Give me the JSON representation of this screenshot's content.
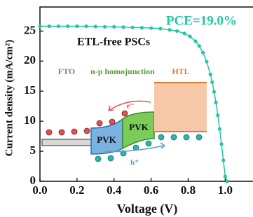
{
  "chart_data": {
    "type": "line",
    "x_label": "Voltage (V)",
    "y_label": "Current density (mA/cm²)",
    "annotations": [
      "PCE=19.0%",
      "ETL-free PSCs",
      "FTO",
      "n-p homojunction",
      "HTL",
      "PVK",
      "PVK",
      "e⁻",
      "h⁺"
    ],
    "x": [
      0,
      0.05,
      0.1,
      0.15,
      0.2,
      0.25,
      0.3,
      0.35,
      0.4,
      0.45,
      0.5,
      0.55,
      0.6,
      0.65,
      0.7,
      0.74,
      0.78,
      0.81,
      0.84,
      0.86,
      0.88,
      0.9,
      0.92,
      0.93,
      0.94,
      0.95,
      0.96,
      0.97,
      0.98,
      0.99,
      1.0,
      1.01
    ],
    "series": [
      {
        "color": "#22c7a0",
        "values": [
          25.8,
          25.8,
          25.8,
          25.8,
          25.8,
          25.8,
          25.75,
          25.7,
          25.7,
          25.65,
          25.6,
          25.55,
          25.5,
          25.4,
          25.2,
          25.0,
          24.6,
          24.1,
          23.3,
          22.5,
          21.4,
          19.9,
          17.8,
          16.5,
          14.9,
          13.1,
          11.0,
          8.7,
          6.2,
          3.5,
          0.8,
          0
        ]
      }
    ],
    "xlim": [
      0,
      1.15
    ],
    "xticks": [
      {
        "value": 0,
        "label": "0.0"
      },
      0.2,
      0.4,
      0.6,
      0.8,
      {
        "value": 1,
        "label": "1.0"
      }
    ],
    "ylim": [
      0,
      29
    ],
    "yticks": [
      0,
      5,
      10,
      15,
      20,
      25
    ]
  }
}
